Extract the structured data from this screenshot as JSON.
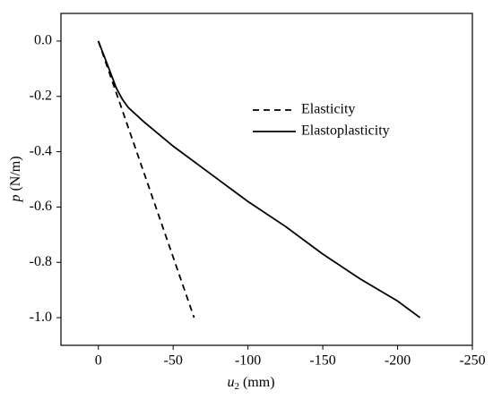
{
  "chart_data": {
    "type": "line",
    "xlabel": {
      "symbol": "u",
      "subscript": "2",
      "unit": "(mm)"
    },
    "ylabel": {
      "symbol": "p",
      "unit": "(N/m)"
    },
    "xlim": [
      25,
      -250
    ],
    "xticks": [
      0,
      -50,
      -100,
      -150,
      -200,
      -250
    ],
    "ylim": [
      -1.1,
      0.1
    ],
    "yticks": [
      {
        "value": 0,
        "label": "0.0"
      },
      {
        "value": -0.2,
        "label": "-0.2"
      },
      {
        "value": -0.4,
        "label": "-0.4"
      },
      {
        "value": -0.6,
        "label": "-0.6"
      },
      {
        "value": -0.8,
        "label": "-0.8"
      },
      {
        "value": -1.0,
        "label": "-1.0"
      }
    ],
    "legend": "right",
    "series": [
      {
        "name": "Elasticity",
        "color": "#000000",
        "dash": true,
        "x": [
          0,
          -64
        ],
        "values": [
          0,
          -1.0
        ]
      },
      {
        "name": "Elastoplasticity",
        "color": "#000000",
        "dash": false,
        "x": [
          0,
          -5,
          -12,
          -16,
          -20,
          -30,
          -50,
          -75,
          -100,
          -125,
          -150,
          -175,
          -200,
          -215
        ],
        "values": [
          0,
          -0.07,
          -0.17,
          -0.21,
          -0.24,
          -0.29,
          -0.38,
          -0.48,
          -0.58,
          -0.67,
          -0.77,
          -0.86,
          -0.94,
          -1.0
        ]
      }
    ]
  }
}
